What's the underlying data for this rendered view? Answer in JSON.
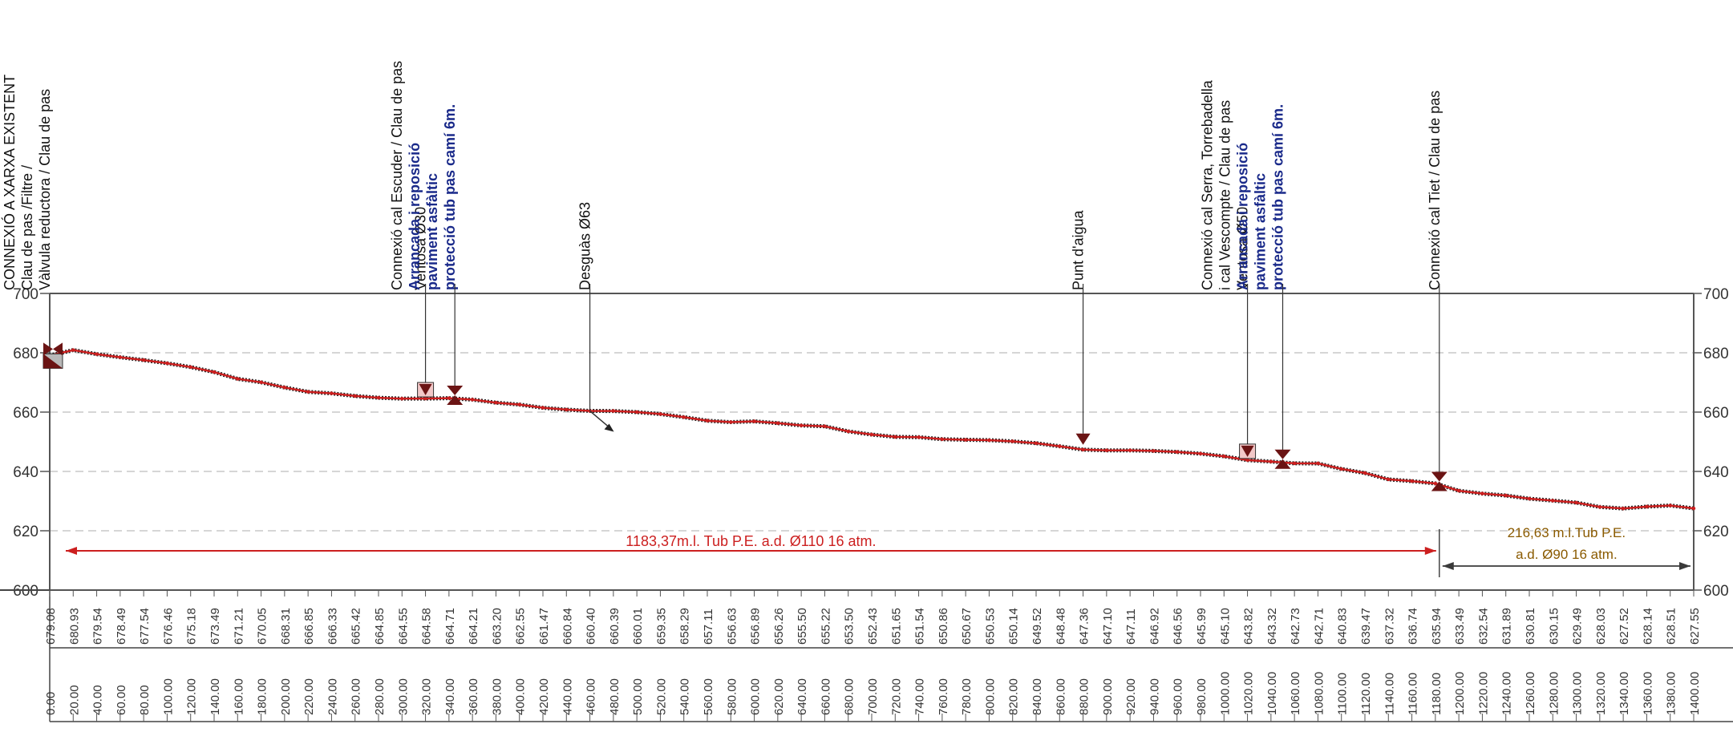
{
  "chart_data": {
    "type": "line",
    "title": "",
    "xlabel": "",
    "ylabel": "",
    "xlim": [
      0,
      1400
    ],
    "ylim": [
      600,
      700
    ],
    "yticks": [
      "700",
      "680",
      "660",
      "640",
      "620",
      "600"
    ],
    "x": [
      0,
      20,
      40,
      60,
      80,
      100,
      120,
      140,
      160,
      180,
      200,
      220,
      240,
      260,
      280,
      300,
      320,
      340,
      360,
      380,
      400,
      420,
      440,
      460,
      480,
      500,
      520,
      540,
      560,
      580,
      600,
      620,
      640,
      660,
      680,
      700,
      720,
      740,
      760,
      780,
      800,
      820,
      840,
      860,
      880,
      900,
      920,
      940,
      960,
      980,
      1000,
      1020,
      1040,
      1060,
      1080,
      1100,
      1120,
      1140,
      1160,
      1180,
      1200,
      1220,
      1240,
      1260,
      1280,
      1300,
      1320,
      1340,
      1360,
      1380,
      1400
    ],
    "x_labels": [
      "0.00",
      "20.00",
      "40.00",
      "60.00",
      "80.00",
      "100.00",
      "120.00",
      "140.00",
      "160.00",
      "180.00",
      "200.00",
      "220.00",
      "240.00",
      "260.00",
      "280.00",
      "300.00",
      "320.00",
      "340.00",
      "360.00",
      "380.00",
      "400.00",
      "420.00",
      "440.00",
      "460.00",
      "480.00",
      "500.00",
      "520.00",
      "540.00",
      "560.00",
      "580.00",
      "600.00",
      "620.00",
      "640.00",
      "660.00",
      "680.00",
      "700.00",
      "720.00",
      "740.00",
      "760.00",
      "780.00",
      "800.00",
      "820.00",
      "840.00",
      "860.00",
      "880.00",
      "900.00",
      "920.00",
      "940.00",
      "960.00",
      "980.00",
      "1000.00",
      "1020.00",
      "1040.00",
      "1060.00",
      "1080.00",
      "1100.00",
      "1120.00",
      "1140.00",
      "1160.00",
      "1180.00",
      "1200.00",
      "1220.00",
      "1240.00",
      "1260.00",
      "1280.00",
      "1300.00",
      "1320.00",
      "1340.00",
      "1360.00",
      "1380.00",
      "1400.00"
    ],
    "y": [
      679.08,
      680.93,
      679.54,
      678.49,
      677.54,
      676.46,
      675.18,
      673.49,
      671.21,
      670.05,
      668.31,
      666.85,
      666.33,
      665.42,
      664.85,
      664.55,
      664.58,
      664.71,
      664.21,
      663.2,
      662.55,
      661.47,
      660.84,
      660.4,
      660.39,
      660.01,
      659.35,
      658.29,
      657.11,
      656.63,
      656.89,
      656.26,
      655.5,
      655.22,
      653.5,
      652.43,
      651.65,
      651.54,
      650.86,
      650.67,
      650.53,
      650.14,
      649.52,
      648.48,
      647.36,
      647.1,
      647.11,
      646.92,
      646.56,
      645.99,
      645.1,
      643.82,
      643.32,
      642.73,
      642.71,
      640.83,
      639.47,
      637.32,
      636.74,
      635.94,
      633.49,
      632.54,
      631.89,
      630.81,
      630.15,
      629.49,
      628.03,
      627.52,
      628.14,
      628.51,
      627.55
    ],
    "y_labels": [
      "679.08",
      "680.93",
      "679.54",
      "678.49",
      "677.54",
      "676.46",
      "675.18",
      "673.49",
      "671.21",
      "670.05",
      "668.31",
      "666.85",
      "666.33",
      "665.42",
      "664.85",
      "664.55",
      "664.58",
      "664.71",
      "664.21",
      "663.20",
      "662.55",
      "661.47",
      "660.84",
      "660.40",
      "660.39",
      "660.01",
      "659.35",
      "658.29",
      "657.11",
      "656.63",
      "656.89",
      "656.26",
      "655.50",
      "655.22",
      "653.50",
      "652.43",
      "651.65",
      "651.54",
      "650.86",
      "650.67",
      "650.53",
      "650.14",
      "649.52",
      "648.48",
      "647.36",
      "647.10",
      "647.11",
      "646.92",
      "646.56",
      "645.99",
      "645.10",
      "643.82",
      "643.32",
      "642.73",
      "642.71",
      "640.83",
      "639.47",
      "637.32",
      "636.74",
      "635.94",
      "633.49",
      "632.54",
      "631.89",
      "630.81",
      "630.15",
      "629.49",
      "628.03",
      "627.52",
      "628.14",
      "628.51",
      "627.55"
    ],
    "grid": true,
    "pipe_segments": [
      {
        "label": "1183,37m.l. Tub P.E. a.d. Ø110 16 atm.",
        "from": 0,
        "to": 1183.37,
        "color": "#cc1f1f"
      },
      {
        "label_line1": "216,63 m.l.Tub P.E.",
        "label_line2": "a.d. Ø90 16 atm.",
        "from": 1183.37,
        "to": 1400,
        "color": "#3a3a3a"
      }
    ],
    "annotations": [
      {
        "x": 0,
        "lines": [
          "CONNEXIÓ A XARXA EXISTENT",
          "Clau de pas /Filtre /",
          "Vàlvula reductora / Clau de pas"
        ],
        "colors": [
          "#111111",
          "#111111",
          "#111111"
        ],
        "marker": "double"
      },
      {
        "x": 320,
        "lines": [
          "Ventosa Ø30"
        ],
        "colors": [
          "#111111"
        ],
        "marker": "box"
      },
      {
        "x": 345,
        "lines": [
          "Connexió cal Escuder / Clau de pas",
          "Arrancada i reposició",
          "paviment asfàltic",
          "protecció tub pas camí 6m."
        ],
        "colors": [
          "#111111",
          "#1a2a8a",
          "#1a2a8a",
          "#1a2a8a"
        ],
        "marker": "hourglass"
      },
      {
        "x": 460,
        "lines": [
          "Desguàs Ø63"
        ],
        "colors": [
          "#111111"
        ],
        "marker": "arrow"
      },
      {
        "x": 880,
        "lines": [
          "Punt d'aigua"
        ],
        "colors": [
          "#111111"
        ],
        "marker": "triangle"
      },
      {
        "x": 1020,
        "lines": [
          "Ventosa Ø50"
        ],
        "colors": [
          "#111111"
        ],
        "marker": "box"
      },
      {
        "x": 1050,
        "lines": [
          "Connexió cal Serra, Torrebadella",
          "i cal Vescompte / Clau de pas",
          "Arrancada i reposició",
          "paviment asfàltic",
          "protecció tub pas camí 6m."
        ],
        "colors": [
          "#111111",
          "#111111",
          "#1a2a8a",
          "#1a2a8a",
          "#1a2a8a"
        ],
        "marker": "hourglass"
      },
      {
        "x": 1183.37,
        "lines": [
          "Connexió cal Tiet / Clau de pas"
        ],
        "colors": [
          "#111111"
        ],
        "marker": "hourglass"
      }
    ],
    "colors": {
      "profile": "#cc1f1f",
      "profile_shadow": "#222222",
      "grid": "#c8c8c8",
      "axis": "#555555",
      "marker": "#6b1414",
      "note": "#1a2a8a",
      "segment2_label": "#8a5a00"
    }
  }
}
